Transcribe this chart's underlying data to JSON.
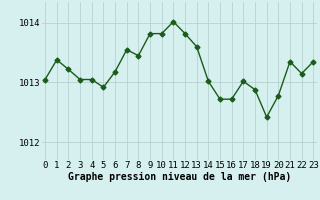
{
  "x": [
    0,
    1,
    2,
    3,
    4,
    5,
    6,
    7,
    8,
    9,
    10,
    11,
    12,
    13,
    14,
    15,
    16,
    17,
    18,
    19,
    20,
    21,
    22,
    23
  ],
  "y": [
    1013.05,
    1013.38,
    1013.22,
    1013.05,
    1013.05,
    1012.92,
    1013.18,
    1013.55,
    1013.45,
    1013.82,
    1013.82,
    1014.02,
    1013.82,
    1013.6,
    1013.02,
    1012.72,
    1012.72,
    1013.02,
    1012.88,
    1012.42,
    1012.78,
    1013.35,
    1013.15,
    1013.35
  ],
  "line_color": "#1a5c1a",
  "marker": "D",
  "marker_size": 2.5,
  "linewidth": 1.0,
  "bg_color": "#d6f0f0",
  "grid_color": "#b8d0d0",
  "xlabel": "Graphe pression niveau de la mer (hPa)",
  "xlabel_fontsize": 7,
  "xlabel_fontweight": "bold",
  "ytick_labels": [
    "1012",
    "1013",
    "1014"
  ],
  "yticks": [
    1012,
    1013,
    1014
  ],
  "xticks": [
    0,
    1,
    2,
    3,
    4,
    5,
    6,
    7,
    8,
    9,
    10,
    11,
    12,
    13,
    14,
    15,
    16,
    17,
    18,
    19,
    20,
    21,
    22,
    23
  ],
  "ylim": [
    1011.7,
    1014.35
  ],
  "xlim": [
    -0.3,
    23.3
  ],
  "tick_labelsize": 6.5
}
